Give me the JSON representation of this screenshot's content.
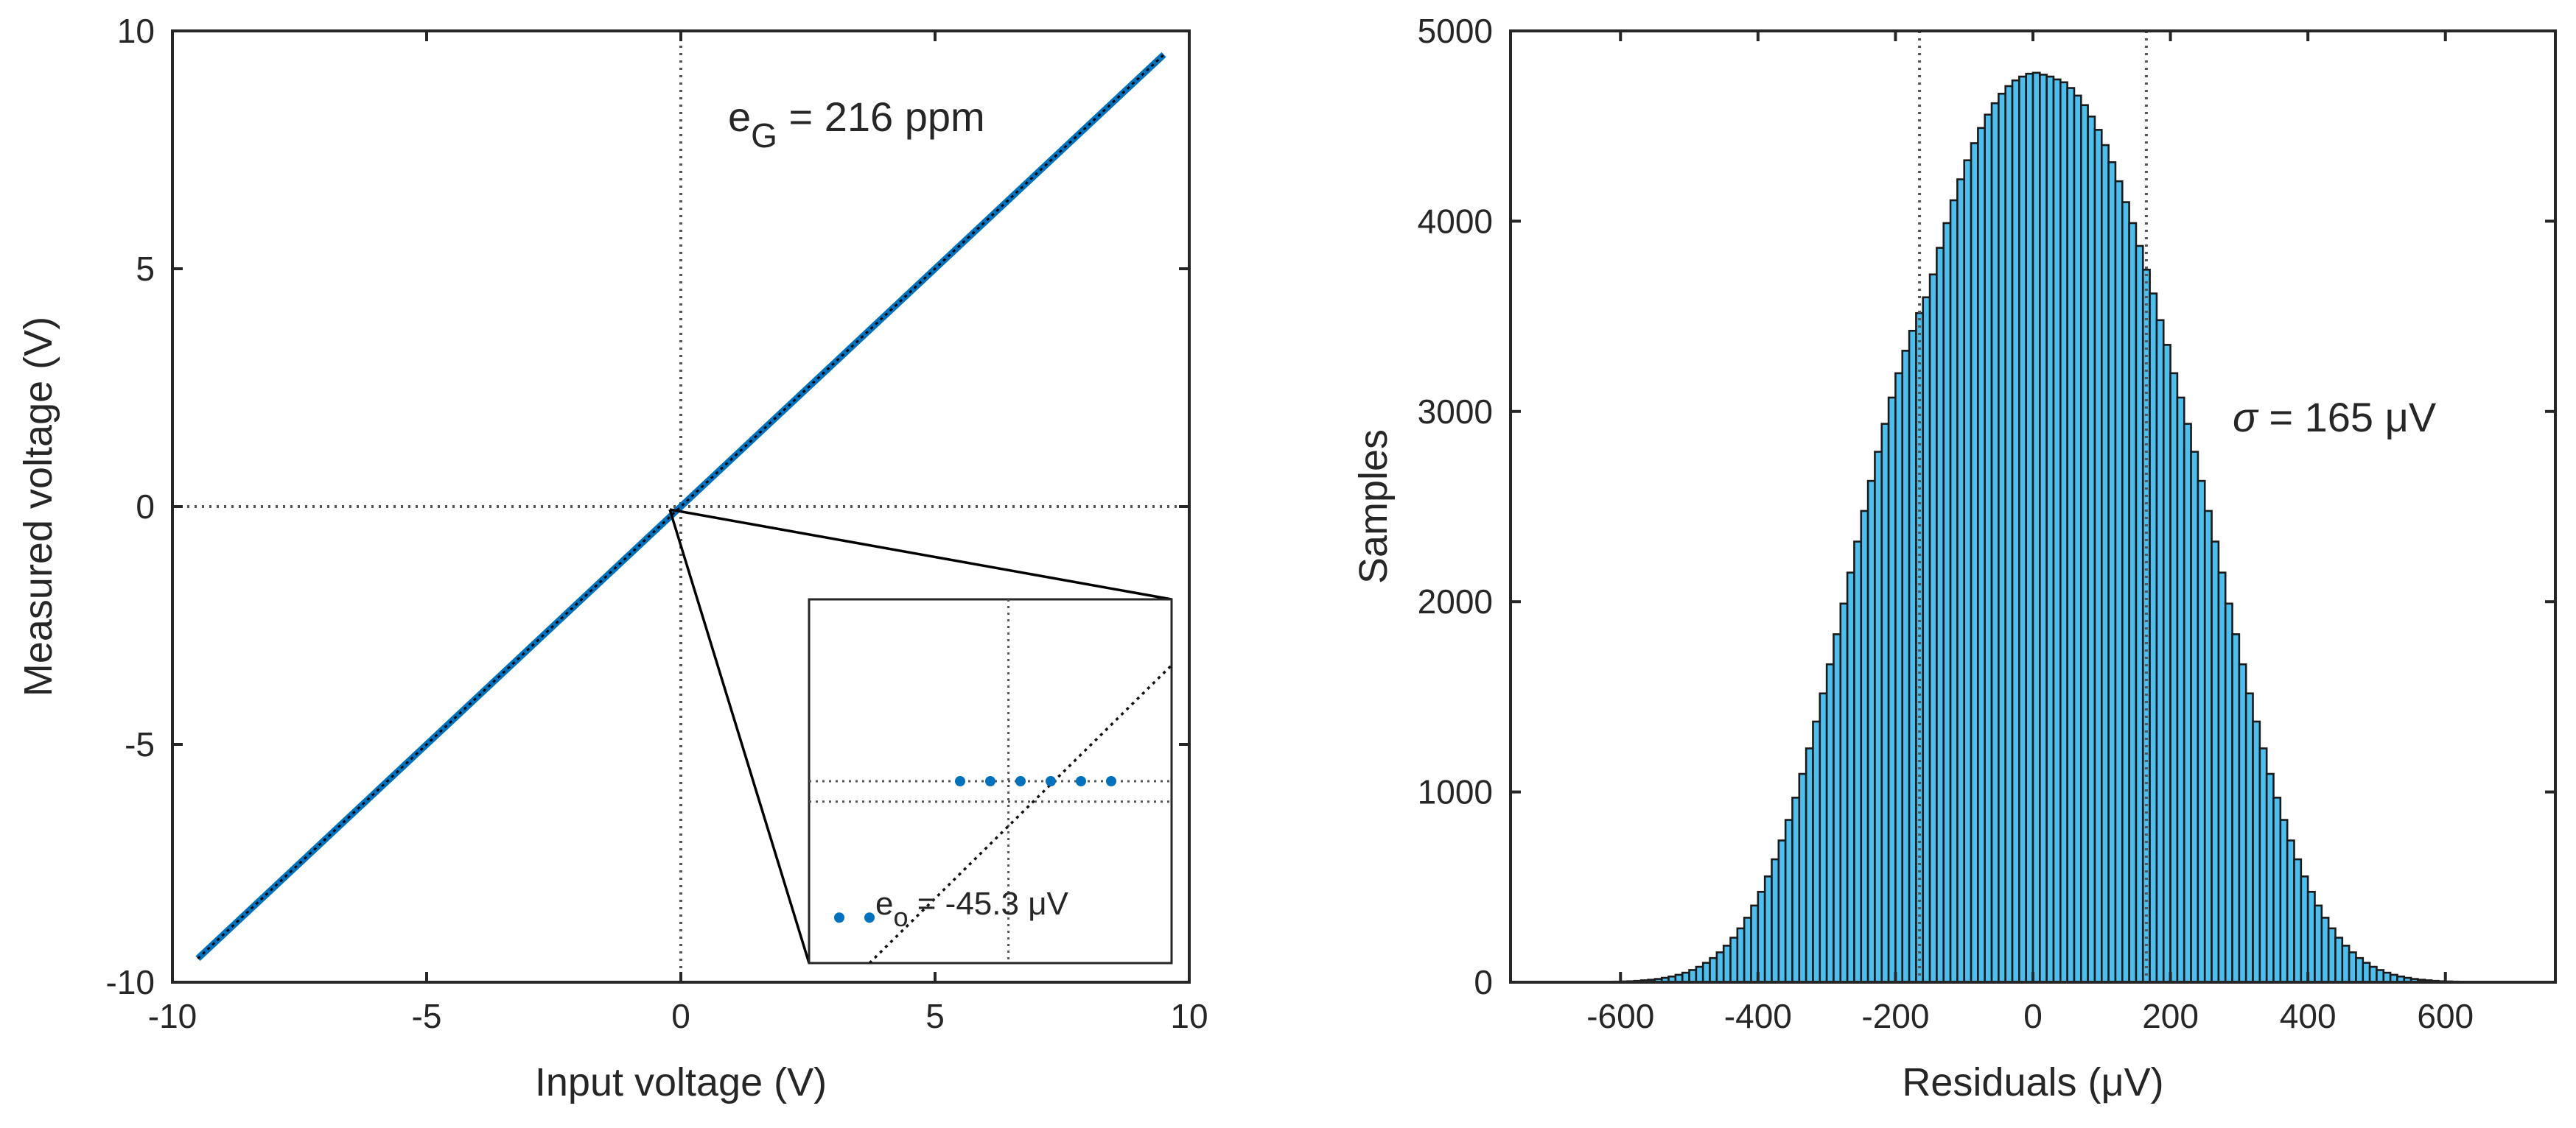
{
  "chart_data": [
    {
      "type": "scatter",
      "title": "",
      "xlabel": "Input voltage (V)",
      "ylabel": "Measured voltage (V)",
      "xlim": [
        -10,
        10
      ],
      "ylim": [
        -10,
        10
      ],
      "xticks": [
        "-10",
        "-5",
        "0",
        "5",
        "10"
      ],
      "yticks": [
        "-10",
        "-5",
        "0",
        "5",
        "10"
      ],
      "grid": false,
      "reference_lines": {
        "x": 0,
        "y": 0,
        "style": "dotted"
      },
      "series": [
        {
          "x_range": [
            -9.5,
            9.5
          ],
          "fit": {
            "slope": 1.000216,
            "intercept_uV": -45.3
          },
          "color": "#0072BD",
          "fit_color": "#000000"
        }
      ],
      "annotation": {
        "prefix": "e",
        "sub": "G",
        "text": " = 216 ppm"
      },
      "inset": {
        "zoom_of": [
          0,
          0
        ],
        "points": [
          {
            "x": -3,
            "y": -1
          },
          {
            "x": -2,
            "y": -1
          },
          {
            "x": 1,
            "y": 2
          },
          {
            "x": 2,
            "y": 2
          },
          {
            "x": 3,
            "y": 2
          },
          {
            "x": 4,
            "y": 2
          },
          {
            "x": 5,
            "y": 2
          },
          {
            "x": 6,
            "y": 2
          }
        ],
        "crosshair_x": 2.6,
        "measured_y_line": 2,
        "fit_y_line": 1.55,
        "annotation": {
          "prefix": "e",
          "sub": "o",
          "text": " = -45.3 ",
          "unit": "μV"
        }
      }
    },
    {
      "type": "bar",
      "title": "",
      "xlabel": "Residuals (μV)",
      "ylabel": "Samples",
      "xlim": [
        -760,
        760
      ],
      "ylim": [
        0,
        5000
      ],
      "xticks": [
        "-600",
        "-400",
        "-200",
        "0",
        "200",
        "400",
        "600"
      ],
      "yticks": [
        "0",
        "1000",
        "2000",
        "3000",
        "4000",
        "5000"
      ],
      "grid": false,
      "bin_width": 10,
      "bin_range": [
        -620,
        620
      ],
      "counts": [
        2,
        3,
        4,
        5,
        7,
        10,
        13,
        17,
        23,
        30,
        39,
        50,
        64,
        81,
        102,
        127,
        157,
        192,
        234,
        283,
        339,
        403,
        475,
        556,
        646,
        745,
        853,
        970,
        1095,
        1229,
        1370,
        1518,
        1671,
        1829,
        1990,
        2153,
        2316,
        2477,
        2635,
        2788,
        2935,
        3073,
        3201,
        3319,
        3424,
        3517,
        3600,
        3720,
        3860,
        3990,
        4110,
        4220,
        4320,
        4410,
        4490,
        4560,
        4620,
        4670,
        4710,
        4740,
        4760,
        4775,
        4780,
        4770,
        4760,
        4745,
        4730,
        4700,
        4660,
        4610,
        4550,
        4480,
        4400,
        4310,
        4210,
        4100,
        3990,
        3870,
        3745,
        3620,
        3480,
        3350,
        3201,
        3073,
        2935,
        2788,
        2635,
        2477,
        2316,
        2153,
        1990,
        1829,
        1671,
        1518,
        1370,
        1229,
        1095,
        970,
        853,
        745,
        646,
        556,
        475,
        403,
        339,
        283,
        234,
        192,
        157,
        127,
        102,
        81,
        64,
        50,
        39,
        30,
        23,
        17,
        13,
        10,
        7,
        5,
        4,
        3,
        2
      ],
      "bar_color": "#4DBEEE",
      "edge_color": "#1a1a1a",
      "sigma_lines": [
        -165,
        165
      ],
      "annotation": {
        "symbol": "σ",
        "text": " = 165 ",
        "unit": "μV"
      }
    }
  ]
}
